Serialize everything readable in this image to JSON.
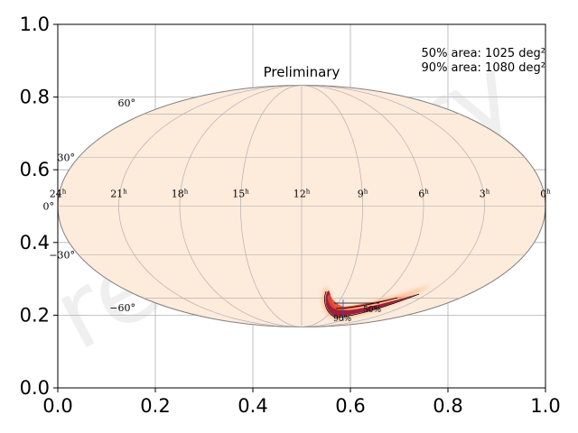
{
  "chart_data": {
    "type": "scatter",
    "title": "Preliminary",
    "watermark": "Preliminary",
    "xlim": [
      0.0,
      1.0
    ],
    "ylim": [
      0.0,
      1.0
    ],
    "x_ticks": [
      "0.0",
      "0.2",
      "0.4",
      "0.6",
      "0.8",
      "1.0"
    ],
    "y_ticks": [
      "0.0",
      "0.2",
      "0.4",
      "0.6",
      "0.8",
      "1.0"
    ],
    "grid": true,
    "projection": "mollweide",
    "ra_labels": [
      "24",
      "21",
      "18",
      "15",
      "12",
      "9",
      "6",
      "3",
      "0"
    ],
    "ra_suffix": "h",
    "dec_labels": [
      "60°",
      "30°",
      "0°",
      "−30°",
      "−60°"
    ],
    "annotations": {
      "area50": "50% area: 1025 deg²",
      "area90": "90% area: 1080 deg²",
      "contour50": "50%",
      "contour90": "90%"
    },
    "colors": {
      "map_background": "#fdebdc",
      "skymap_high": "#a01e3c",
      "skymap_mid": "#e04a2f",
      "skymap_low": "#fbb27e",
      "grid": "#b0b0b0",
      "ellipse_outline": "#808080",
      "contour": "#000000"
    }
  }
}
